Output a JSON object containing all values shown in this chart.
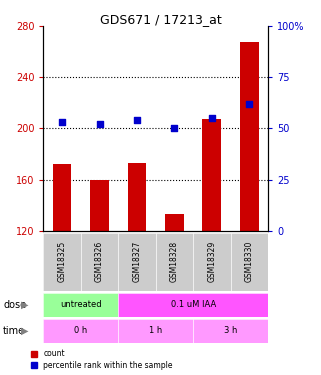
{
  "title": "GDS671 / 17213_at",
  "samples": [
    "GSM18325",
    "GSM18326",
    "GSM18327",
    "GSM18328",
    "GSM18329",
    "GSM18330"
  ],
  "bar_values": [
    172,
    160,
    173,
    133,
    207,
    268
  ],
  "scatter_values": [
    53,
    52,
    54,
    50,
    55,
    62
  ],
  "ylim_left": [
    120,
    280
  ],
  "ylim_right": [
    0,
    100
  ],
  "yticks_left": [
    120,
    160,
    200,
    240,
    280
  ],
  "yticks_right": [
    0,
    25,
    50,
    75,
    100
  ],
  "bar_color": "#cc0000",
  "scatter_color": "#0000cc",
  "dose_row_color_1": "#99ff99",
  "dose_row_color_2": "#ff55ff",
  "time_row_color": "#ff99ff",
  "legend_count_color": "#cc0000",
  "legend_pct_color": "#0000cc",
  "right_axis_color": "#0000cc",
  "left_axis_color": "#cc0000",
  "grid_color": "black",
  "xlabel_area_bg": "#cccccc"
}
